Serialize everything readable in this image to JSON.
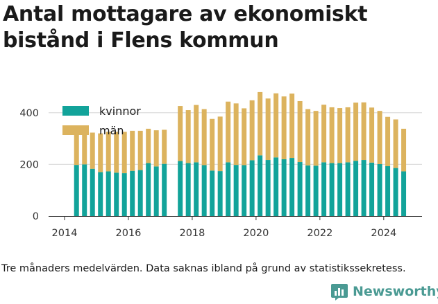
{
  "header": {
    "title": "Antal mottagare av ekonomiskt bistånd i Flens kommun"
  },
  "footer": {
    "caption": "Tre månaders medelvärden. Data saknas ibland på grund av statistikssekretess.",
    "brand": "Newsworthy"
  },
  "colors": {
    "kvinnor": "#12a39a",
    "man": "#dcb35e",
    "grid": "#dddddd",
    "axis": "#333333",
    "brand": "#4a9a93"
  },
  "chart_data": {
    "type": "bar",
    "stacked": true,
    "title": "Antal mottagare av ekonomiskt bistånd i Flens kommun",
    "xlabel": "",
    "ylabel": "",
    "ylim": [
      0,
      520
    ],
    "xlim": [
      2013.5,
      2025.2
    ],
    "grid": "horizontal",
    "legend_position": "top-left",
    "y_ticks": [
      0,
      200,
      400
    ],
    "x_ticks": [
      2014,
      2016,
      2018,
      2020,
      2022,
      2024
    ],
    "x": [
      "2014-Q2",
      "2014-Q3",
      "2014-Q4",
      "2015-Q1",
      "2015-Q2",
      "2015-Q3",
      "2015-Q4",
      "2016-Q1",
      "2016-Q2",
      "2016-Q3",
      "2016-Q4",
      "2017-Q1",
      "2017-Q2",
      "2017-Q3",
      "2017-Q4",
      "2018-Q1",
      "2018-Q2",
      "2018-Q3",
      "2018-Q4",
      "2019-Q1",
      "2019-Q2",
      "2019-Q3",
      "2019-Q4",
      "2020-Q1",
      "2020-Q2",
      "2020-Q3",
      "2020-Q4",
      "2021-Q1",
      "2021-Q2",
      "2021-Q3",
      "2021-Q4",
      "2022-Q1",
      "2022-Q2",
      "2022-Q3",
      "2022-Q4",
      "2023-Q1",
      "2023-Q2",
      "2023-Q3",
      "2023-Q4",
      "2024-Q1",
      "2024-Q2",
      "2024-Q3"
    ],
    "x_numeric": [
      2014.375,
      2014.625,
      2014.875,
      2015.125,
      2015.375,
      2015.625,
      2015.875,
      2016.125,
      2016.375,
      2016.625,
      2016.875,
      2017.125,
      2017.375,
      2017.625,
      2017.875,
      2018.125,
      2018.375,
      2018.625,
      2018.875,
      2019.125,
      2019.375,
      2019.625,
      2019.875,
      2020.125,
      2020.375,
      2020.625,
      2020.875,
      2021.125,
      2021.375,
      2021.625,
      2021.875,
      2022.125,
      2022.375,
      2022.625,
      2022.875,
      2023.125,
      2023.375,
      2023.625,
      2023.875,
      2024.125,
      2024.375,
      2024.625
    ],
    "series": [
      {
        "name": "kvinnor",
        "values": [
          198,
          200,
          183,
          170,
          173,
          168,
          166,
          175,
          178,
          205,
          192,
          202,
          null,
          213,
          205,
          208,
          197,
          176,
          174,
          208,
          198,
          197,
          216,
          235,
          217,
          227,
          220,
          225,
          209,
          196,
          195,
          208,
          205,
          205,
          208,
          214,
          217,
          207,
          201,
          193,
          186,
          173
        ]
      },
      {
        "name": "män",
        "values": [
          127,
          130,
          140,
          150,
          153,
          158,
          160,
          155,
          152,
          133,
          140,
          132,
          null,
          213,
          205,
          222,
          217,
          200,
          211,
          235,
          238,
          220,
          232,
          245,
          238,
          248,
          243,
          249,
          236,
          218,
          212,
          223,
          216,
          213,
          213,
          225,
          223,
          213,
          206,
          191,
          188,
          165
        ]
      }
    ]
  }
}
